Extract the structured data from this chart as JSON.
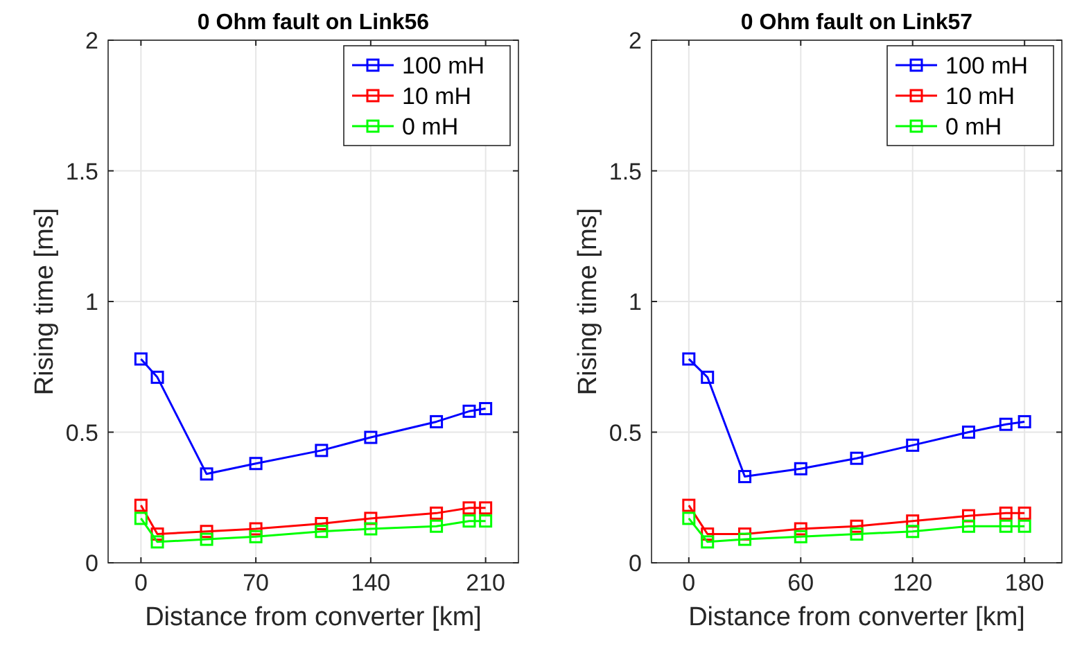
{
  "chart_data": [
    {
      "type": "line",
      "title": "0 Ohm fault on Link56",
      "xlabel": "Distance from converter [km]",
      "ylabel": "Rising time [ms]",
      "xlim": [
        -20,
        230
      ],
      "xticks": [
        0,
        70,
        140,
        210
      ],
      "ylim": [
        0,
        2
      ],
      "yticks": [
        0,
        0.5,
        1,
        1.5,
        2
      ],
      "grid": true,
      "legend": "top right",
      "marker": "square",
      "x": [
        0,
        10,
        40,
        70,
        110,
        140,
        180,
        200,
        210
      ],
      "series": [
        {
          "name": "100 mH",
          "color": "#0000ff",
          "values": [
            0.78,
            0.71,
            0.34,
            0.38,
            0.43,
            0.48,
            0.54,
            0.58,
            0.59
          ]
        },
        {
          "name": "10 mH",
          "color": "#ff0000",
          "values": [
            0.22,
            0.11,
            0.12,
            0.13,
            0.15,
            0.17,
            0.19,
            0.21,
            0.21
          ]
        },
        {
          "name": "0 mH",
          "color": "#00ff00",
          "values": [
            0.17,
            0.08,
            0.09,
            0.1,
            0.12,
            0.13,
            0.14,
            0.16,
            0.16
          ]
        }
      ]
    },
    {
      "type": "line",
      "title": "0 Ohm fault on Link57",
      "xlabel": "Distance from converter [km]",
      "ylabel": "Rising time [ms]",
      "xlim": [
        -20,
        200
      ],
      "xticks": [
        0,
        60,
        120,
        180
      ],
      "ylim": [
        0,
        2
      ],
      "yticks": [
        0,
        0.5,
        1,
        1.5,
        2
      ],
      "grid": true,
      "legend": "top right",
      "marker": "square",
      "x": [
        0,
        10,
        30,
        60,
        90,
        120,
        150,
        170,
        180
      ],
      "series": [
        {
          "name": "100 mH",
          "color": "#0000ff",
          "values": [
            0.78,
            0.71,
            0.33,
            0.36,
            0.4,
            0.45,
            0.5,
            0.53,
            0.54
          ]
        },
        {
          "name": "10 mH",
          "color": "#ff0000",
          "values": [
            0.22,
            0.11,
            0.11,
            0.13,
            0.14,
            0.16,
            0.18,
            0.19,
            0.19
          ]
        },
        {
          "name": "0 mH",
          "color": "#00ff00",
          "values": [
            0.17,
            0.08,
            0.09,
            0.1,
            0.11,
            0.12,
            0.14,
            0.14,
            0.14
          ]
        }
      ]
    }
  ]
}
